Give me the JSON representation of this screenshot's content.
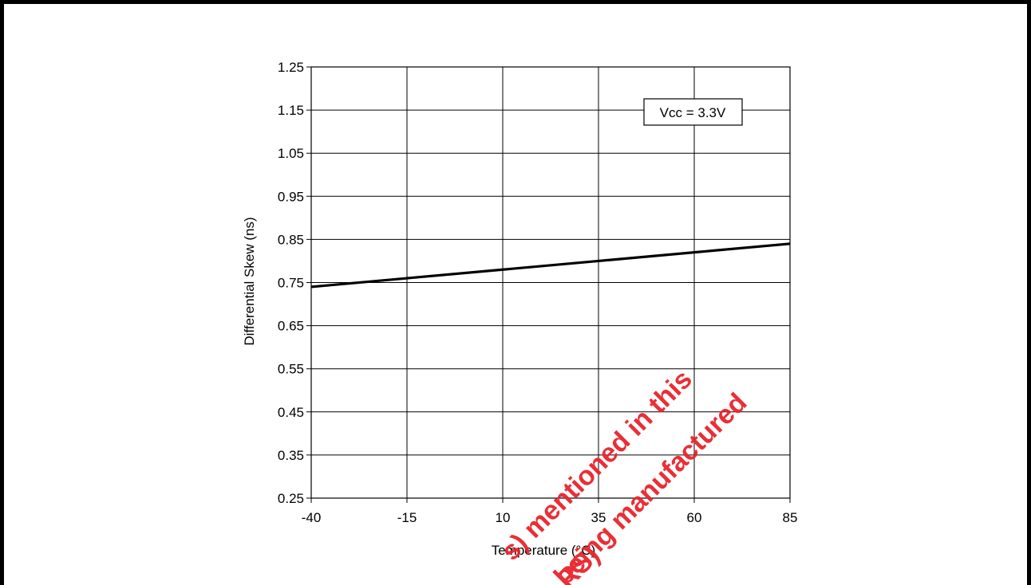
{
  "chart_data": {
    "type": "line",
    "xlabel": "Temperature (°C)",
    "ylabel": "Differential Skew (ns)",
    "x_ticks": [
      "-40",
      "-15",
      "10",
      "35",
      "60",
      "85"
    ],
    "y_ticks": [
      "1.25",
      "1.15",
      "1.05",
      "0.95",
      "0.85",
      "0.75",
      "0.65",
      "0.55",
      "0.45",
      "0.35",
      "0.25"
    ],
    "xlim": [
      -40,
      85
    ],
    "ylim": [
      0.25,
      1.25
    ],
    "grid": true,
    "annotation": "Vcc = 3.3V",
    "series": [
      {
        "x": [
          -40,
          -15,
          10,
          35,
          60,
          85
        ],
        "y": [
          0.74,
          0.76,
          0.78,
          0.8,
          0.82,
          0.84
        ]
      }
    ]
  },
  "watermark": {
    "lines": [
      "s) mentioned in this",
      "being manufactured",
      "RS)"
    ],
    "color": "#e8242c"
  }
}
